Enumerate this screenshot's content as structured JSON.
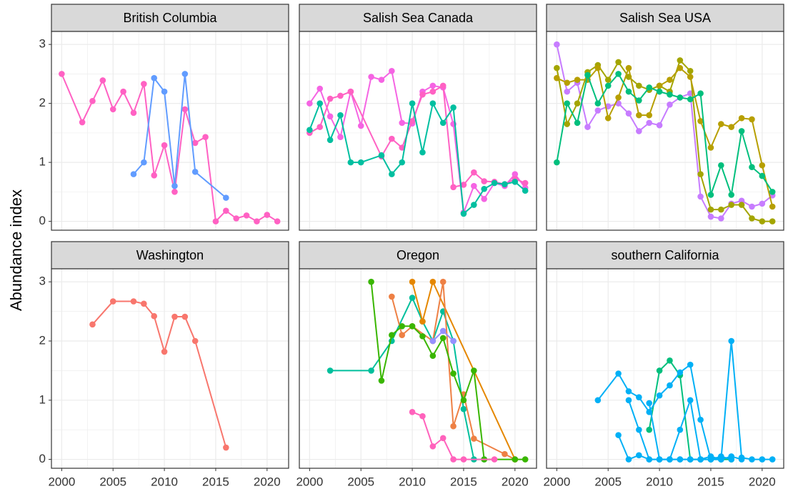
{
  "chart_data": [
    {
      "type": "line",
      "title": "British Columbia",
      "ylabel": "Abundance index",
      "xlim": [
        1999,
        2022.1
      ],
      "ylim": [
        -0.15,
        3.22
      ],
      "xticks": [
        2000,
        2005,
        2010,
        2015,
        2020
      ],
      "yticks": [
        0,
        1,
        2,
        3
      ],
      "grid": true,
      "series": [
        {
          "color": "#FF61C3",
          "x": [
            2000,
            2002,
            2003,
            2004,
            2005,
            2006,
            2007,
            2008,
            2009,
            2010,
            2011,
            2012,
            2013,
            2014,
            2015,
            2016,
            2017,
            2018,
            2019,
            2020,
            2021
          ],
          "values": [
            2.5,
            1.68,
            2.04,
            2.39,
            1.9,
            2.2,
            1.84,
            2.33,
            0.78,
            1.29,
            0.5,
            1.9,
            1.33,
            1.43,
            0,
            0.18,
            0.05,
            0.1,
            0,
            0.11,
            0
          ]
        },
        {
          "color": "#619CFF",
          "x": [
            2007,
            2008,
            2009,
            2010,
            2011,
            2012,
            2013,
            2016
          ],
          "values": [
            0.8,
            1.0,
            2.43,
            2.2,
            0.6,
            2.5,
            0.84,
            0.4
          ]
        }
      ]
    },
    {
      "type": "line",
      "title": "Salish Sea Canada",
      "xlim": [
        1999,
        2022.1
      ],
      "ylim": [
        -0.15,
        3.22
      ],
      "xticks": [
        2000,
        2005,
        2010,
        2015,
        2020
      ],
      "yticks": [
        0,
        1,
        2,
        3
      ],
      "grid": true,
      "series": [
        {
          "color": "#F564E3",
          "x": [
            2000,
            2001,
            2002,
            2003,
            2004,
            2005,
            2006,
            2007,
            2008,
            2009,
            2010,
            2011,
            2012,
            2013,
            2014,
            2015,
            2016,
            2017,
            2018,
            2019,
            2020,
            2021
          ],
          "values": [
            2.0,
            2.25,
            1.78,
            1.43,
            2.2,
            1.62,
            2.45,
            2.4,
            2.55,
            1.67,
            1.66,
            2.2,
            2.3,
            2.27,
            1.65,
            0.15,
            0.6,
            0.38,
            0.65,
            0.6,
            0.8,
            0.57
          ]
        },
        {
          "color": "#FF61C3",
          "x": [
            2000,
            2001,
            2002,
            2003,
            2004,
            2007,
            2008,
            2009,
            2010,
            2011,
            2012,
            2013,
            2014,
            2015,
            2016,
            2017,
            2018,
            2019,
            2020,
            2021
          ],
          "values": [
            1.5,
            1.6,
            2.08,
            2.13,
            2.2,
            1.1,
            1.4,
            1.25,
            1.7,
            2.15,
            2.2,
            2.3,
            0.58,
            0.62,
            0.83,
            0.68,
            0.67,
            0.63,
            0.72,
            0.65
          ]
        },
        {
          "color": "#00BFA0",
          "x": [
            2000,
            2001,
            2002,
            2003,
            2004,
            2005,
            2007,
            2008,
            2009,
            2010,
            2011,
            2012,
            2013,
            2014,
            2015,
            2016,
            2017,
            2018,
            2019,
            2020,
            2021
          ],
          "values": [
            1.55,
            2.0,
            1.38,
            1.8,
            1.0,
            1.0,
            1.12,
            0.8,
            1.0,
            2.0,
            1.17,
            2.0,
            1.67,
            1.93,
            0.13,
            0.28,
            0.55,
            0.65,
            0.63,
            0.67,
            0.52
          ]
        }
      ]
    },
    {
      "type": "line",
      "title": "Salish Sea USA",
      "xlim": [
        1999,
        2022.1
      ],
      "ylim": [
        -0.15,
        3.22
      ],
      "xticks": [
        2000,
        2005,
        2010,
        2015,
        2020
      ],
      "yticks": [
        0,
        1,
        2,
        3
      ],
      "grid": true,
      "series": [
        {
          "color": "#C77CFF",
          "x": [
            2000,
            2001,
            2002,
            2003,
            2004,
            2005,
            2006,
            2007,
            2008,
            2009,
            2010,
            2011,
            2012,
            2013,
            2014,
            2015,
            2016,
            2017,
            2018,
            2019,
            2020,
            2021
          ],
          "values": [
            3.0,
            2.2,
            2.35,
            1.6,
            1.88,
            1.95,
            2.0,
            1.83,
            1.53,
            1.67,
            1.63,
            1.98,
            2.1,
            2.17,
            0.42,
            0.08,
            0.05,
            0.3,
            0.35,
            0.25,
            0.3,
            0.44
          ]
        },
        {
          "color": "#A3A500",
          "x": [
            2000,
            2001,
            2002,
            2003,
            2004,
            2005,
            2006,
            2007,
            2008,
            2009,
            2010,
            2011,
            2012,
            2013,
            2014,
            2015,
            2016,
            2017,
            2018,
            2019,
            2020,
            2021
          ],
          "values": [
            2.6,
            1.65,
            2.0,
            2.53,
            2.65,
            2.4,
            2.7,
            2.45,
            2.3,
            2.23,
            2.3,
            2.2,
            2.73,
            2.55,
            0.8,
            0.2,
            0.2,
            0.28,
            0.28,
            0.05,
            0.0,
            0.0
          ]
        },
        {
          "color": "#B79F00",
          "x": [
            2000,
            2001,
            2002,
            2003,
            2004,
            2005,
            2006,
            2007,
            2008,
            2009,
            2010,
            2011,
            2012,
            2013,
            2014,
            2015,
            2016,
            2017,
            2018,
            2019,
            2020,
            2021
          ],
          "values": [
            2.43,
            2.35,
            2.4,
            2.4,
            2.6,
            1.75,
            2.1,
            2.6,
            1.8,
            1.8,
            2.3,
            2.4,
            2.6,
            2.45,
            1.7,
            1.25,
            1.65,
            1.6,
            1.75,
            1.73,
            0.95,
            0.25
          ]
        },
        {
          "color": "#00BF7D",
          "x": [
            2000,
            2001,
            2002,
            2003,
            2004,
            2005,
            2006,
            2007,
            2008,
            2009,
            2010,
            2011,
            2012,
            2013,
            2014,
            2015,
            2016,
            2017,
            2018,
            2019,
            2020,
            2021
          ],
          "values": [
            1.0,
            2.0,
            1.67,
            2.48,
            2.0,
            2.3,
            2.5,
            2.2,
            2.05,
            2.27,
            2.2,
            2.15,
            2.1,
            2.07,
            2.17,
            0.45,
            0.95,
            0.45,
            1.53,
            0.92,
            0.77,
            0.5
          ]
        }
      ]
    },
    {
      "type": "line",
      "title": "Washington",
      "xlim": [
        1999,
        2022.1
      ],
      "ylim": [
        -0.15,
        3.22
      ],
      "xticks": [
        2000,
        2005,
        2010,
        2015,
        2020
      ],
      "yticks": [
        0,
        1,
        2,
        3
      ],
      "grid": true,
      "series": [
        {
          "color": "#F8766D",
          "x": [
            2003,
            2005,
            2007,
            2008,
            2009,
            2010,
            2011,
            2012,
            2013,
            2016
          ],
          "values": [
            2.28,
            2.67,
            2.67,
            2.63,
            2.42,
            1.82,
            2.41,
            2.41,
            2.0,
            0.2
          ]
        }
      ]
    },
    {
      "type": "line",
      "title": "Oregon",
      "xlim": [
        1999,
        2022.1
      ],
      "ylim": [
        -0.15,
        3.22
      ],
      "xticks": [
        2000,
        2005,
        2010,
        2015,
        2020
      ],
      "yticks": [
        0,
        1,
        2,
        3
      ],
      "grid": true,
      "series": [
        {
          "color": "#00BF9C",
          "x": [
            2002,
            2006,
            2008,
            2010,
            2011,
            2012,
            2013,
            2014,
            2015,
            2016,
            2017
          ],
          "values": [
            1.5,
            1.5,
            2.0,
            2.73,
            2.33,
            2.0,
            2.5,
            2.0,
            0.85,
            0,
            0
          ]
        },
        {
          "color": "#E58700",
          "x": [
            2010,
            2011,
            2012,
            2020
          ],
          "values": [
            3.0,
            2.33,
            3.0,
            0
          ]
        },
        {
          "color": "#EE8044",
          "x": [
            2008,
            2009,
            2010,
            2012,
            2013,
            2014,
            2015,
            2016,
            2019,
            2020
          ],
          "values": [
            2.75,
            2.1,
            2.25,
            2.0,
            3.0,
            0.56,
            1.1,
            0.35,
            0.09,
            0
          ]
        },
        {
          "color": "#39B600",
          "x": [
            2006,
            2007,
            2008,
            2009,
            2010,
            2011,
            2012,
            2013,
            2014,
            2015,
            2016,
            2017,
            2020,
            2021
          ],
          "values": [
            3.0,
            1.33,
            2.1,
            2.25,
            2.25,
            2.08,
            1.75,
            2.05,
            1.45,
            1.0,
            1.5,
            0,
            0,
            0
          ]
        },
        {
          "color": "#9590FF",
          "x": [
            2012,
            2013,
            2014
          ],
          "values": [
            2.0,
            2.17,
            2.0
          ]
        },
        {
          "color": "#FF62BC",
          "x": [
            2010,
            2011,
            2012,
            2013,
            2014,
            2015,
            2018
          ],
          "values": [
            0.8,
            0.73,
            0.22,
            0.36,
            0,
            0,
            0
          ]
        }
      ]
    },
    {
      "type": "line",
      "title": "southern California",
      "xlim": [
        1999,
        2022.1
      ],
      "ylim": [
        -0.15,
        3.22
      ],
      "xticks": [
        2000,
        2005,
        2010,
        2015,
        2020
      ],
      "yticks": [
        0,
        1,
        2,
        3
      ],
      "grid": true,
      "series": [
        {
          "color": "#00BF7D",
          "x": [
            2009,
            2010,
            2011,
            2012,
            2013,
            2014,
            2015,
            2016,
            2017
          ],
          "values": [
            0.5,
            1.5,
            1.67,
            1.42,
            0,
            0,
            0,
            0,
            0
          ]
        },
        {
          "color": "#00B0F6",
          "x": [
            2004,
            2006,
            2007,
            2008,
            2009,
            2010,
            2011,
            2012,
            2013,
            2014,
            2015,
            2016,
            2017,
            2018,
            2019,
            2020,
            2021
          ],
          "values": [
            1.0,
            1.45,
            1.15,
            1.05,
            0.8,
            1.08,
            1.25,
            1.47,
            1.6,
            0.67,
            0,
            0,
            2.0,
            0.03,
            0,
            0,
            0
          ]
        },
        {
          "color": "#00B0F6",
          "x": [
            2006,
            2007,
            2008,
            2009,
            2010,
            2011,
            2012,
            2013,
            2014,
            2015,
            2016,
            2017,
            2018
          ],
          "values": [
            0.41,
            0,
            0.07,
            0,
            0,
            0,
            0,
            0,
            0,
            0.05,
            0,
            0.05,
            0
          ]
        },
        {
          "color": "#00B0F6",
          "x": [
            2007,
            2008,
            2009,
            2010,
            2011,
            2012,
            2013,
            2014,
            2015,
            2016,
            2017
          ],
          "values": [
            1.0,
            0.5,
            0,
            0,
            0,
            0.5,
            1.0,
            0,
            0,
            0.05,
            0
          ]
        },
        {
          "color": "#00B0F6",
          "x": [
            2009,
            2010,
            2011,
            2012,
            2013,
            2014
          ],
          "values": [
            0.95,
            0,
            0,
            0,
            0,
            0
          ]
        }
      ]
    }
  ]
}
